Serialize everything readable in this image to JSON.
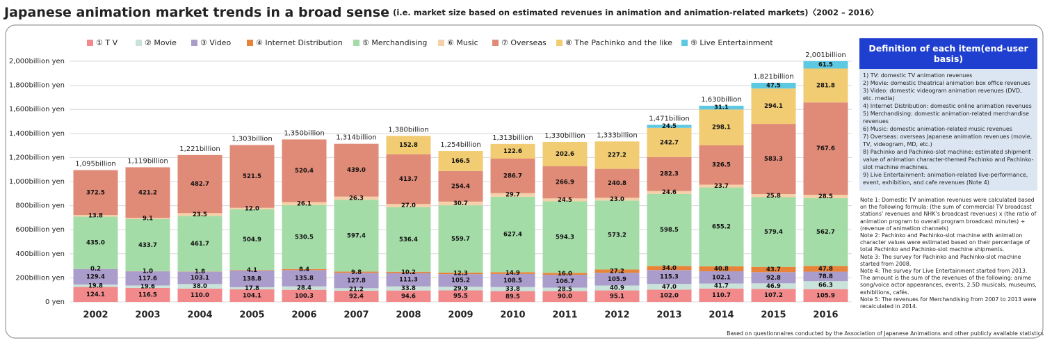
{
  "chart_data": {
    "type": "stacked_bar",
    "title": "Japanese animation market trends in a broad sense",
    "subtitle": "(i.e. market size based on estimated revenues in animation and animation-related markets)〈2002 – 2016〉",
    "categories": [
      "2002",
      "2003",
      "2004",
      "2005",
      "2006",
      "2007",
      "2008",
      "2009",
      "2010",
      "2011",
      "2012",
      "2013",
      "2014",
      "2015",
      "2016"
    ],
    "ylim": [
      0,
      2000
    ],
    "yticks": [
      {
        "value": 0,
        "label": "0 yen"
      },
      {
        "value": 200,
        "label": "200billion yen"
      },
      {
        "value": 400,
        "label": "400billion yen"
      },
      {
        "value": 600,
        "label": "600billion yen"
      },
      {
        "value": 800,
        "label": "800billion yen"
      },
      {
        "value": 1000,
        "label": "1,000billion yen"
      },
      {
        "value": 1200,
        "label": "1,200billion yen"
      },
      {
        "value": 1400,
        "label": "1,400billion yen"
      },
      {
        "value": 1600,
        "label": "1,600billion yen"
      },
      {
        "value": 1800,
        "label": "1,800billion yen"
      },
      {
        "value": 2000,
        "label": "2,000billion yen"
      }
    ],
    "grid": true,
    "legend": "top",
    "series": [
      {
        "name": "① T V",
        "color": "#f28a8c",
        "values": [
          124.1,
          116.5,
          110.0,
          104.1,
          100.3,
          92.4,
          94.6,
          95.5,
          89.5,
          90.0,
          95.1,
          102.0,
          110.7,
          107.2,
          105.9
        ],
        "value_labels": [
          "124.1",
          "116.5",
          "110.0",
          "104.1",
          "100.3",
          "92.4",
          "94.6",
          "95.5",
          "89.5",
          "90.0",
          "95.1",
          "102.0",
          "110.7",
          "107.2",
          "105.9"
        ]
      },
      {
        "name": "② Movie",
        "color": "#c9e3da",
        "values": [
          19.8,
          19.6,
          38.0,
          17.8,
          28.4,
          21.2,
          33.8,
          29.9,
          33.8,
          28.5,
          40.9,
          47.0,
          41.7,
          46.9,
          66.3
        ],
        "value_labels": [
          "19.8",
          "19.6",
          "38.0",
          "17.8",
          "28.4",
          "21.2",
          "33.8",
          "29.9",
          "33.8",
          "28.5",
          "40.9",
          "47.0",
          "41.7",
          "46.9",
          "66.3"
        ]
      },
      {
        "name": "③ Video",
        "color": "#ab9dcb",
        "values": [
          129.4,
          117.6,
          103.1,
          138.8,
          135.8,
          127.8,
          111.3,
          105.2,
          108.5,
          106.7,
          105.9,
          115.3,
          102.1,
          92.8,
          78.8
        ],
        "value_labels": [
          "129.4",
          "117.6",
          "103.1",
          "138.8",
          "135.8",
          "127.8",
          "111.3",
          "105.2",
          "108.5",
          "106.7",
          "105.9",
          "115.3",
          "102.1",
          "92.8",
          "78.8"
        ]
      },
      {
        "name": "④ Internet Distribution",
        "color": "#e8843a",
        "values": [
          0.2,
          1.0,
          1.8,
          4.1,
          8.4,
          9.8,
          10.2,
          12.3,
          14.9,
          16.0,
          27.2,
          34.0,
          40.8,
          43.7,
          47.8
        ],
        "value_labels": [
          "0.2",
          "1.0",
          "1.8",
          "4.1",
          "8.4",
          "9.8",
          "10.2",
          "12.3",
          "14.9",
          "16.0",
          "27.2",
          "34.0",
          "40.8",
          "43.7",
          "47.8"
        ]
      },
      {
        "name": "⑤ Merchandising",
        "color": "#a4dca8",
        "values": [
          435.0,
          433.7,
          461.7,
          504.9,
          530.5,
          597.4,
          536.4,
          559.7,
          627.4,
          594.3,
          573.2,
          598.5,
          655.2,
          579.4,
          562.7
        ],
        "value_labels": [
          "435.0",
          "433.7",
          "461.7",
          "504.9",
          "530.5",
          "597.4",
          "536.4",
          "559.7",
          "627.4",
          "594.3",
          "573.2",
          "598.5",
          "655.2",
          "579.4",
          "562.7"
        ]
      },
      {
        "name": "⑥ Music",
        "color": "#f5d0a8",
        "values": [
          13.8,
          9.1,
          23.5,
          12.0,
          26.1,
          26.3,
          27.0,
          30.7,
          29.7,
          24.5,
          23.0,
          24.6,
          23.7,
          25.8,
          28.5
        ],
        "value_labels": [
          "13.8",
          "9.1",
          "23.5",
          "12.0",
          "26.1",
          "26.3",
          "27.0",
          "30.7",
          "29.7",
          "24.5",
          "23.0",
          "24.6",
          "23.7",
          "25.8",
          "28.5"
        ]
      },
      {
        "name": "⑦ Overseas",
        "color": "#e08a78",
        "values": [
          372.5,
          421.2,
          482.7,
          521.5,
          520.4,
          439.0,
          413.7,
          254.4,
          286.7,
          266.9,
          240.8,
          282.3,
          326.5,
          583.3,
          767.6
        ],
        "value_labels": [
          "372.5",
          "421.2",
          "482.7",
          "521.5",
          "520.4",
          "439.0",
          "413.7",
          "254.4",
          "286.7",
          "266.9",
          "240.8",
          "282.3",
          "326.5",
          "583.3",
          "767.6"
        ]
      },
      {
        "name": "⑧ The Pachinko and the like",
        "color": "#f1cc72",
        "values": [
          null,
          null,
          null,
          null,
          null,
          null,
          152.8,
          166.5,
          122.6,
          202.6,
          227.2,
          242.7,
          298.1,
          294.1,
          281.8
        ],
        "value_labels": [
          null,
          null,
          null,
          null,
          null,
          null,
          "152.8",
          "166.5",
          "122.6",
          "202.6",
          "227.2",
          "242.7",
          "298.1",
          "294.1",
          "281.8"
        ]
      },
      {
        "name": "⑨ Live Entertainment",
        "color": "#5cc8e2",
        "values": [
          null,
          null,
          null,
          null,
          null,
          null,
          null,
          null,
          null,
          null,
          null,
          24.5,
          31.1,
          47.5,
          61.5
        ],
        "value_labels": [
          null,
          null,
          null,
          null,
          null,
          null,
          null,
          null,
          null,
          null,
          null,
          "24.5",
          "31.1",
          "47.5",
          "61.5"
        ]
      }
    ],
    "totals": {
      "values": [
        1095,
        1119,
        1221,
        1303,
        1350,
        1314,
        1380,
        1254,
        1313,
        1330,
        1333,
        1471,
        1630,
        1821,
        2001
      ],
      "value_labels": [
        "1,095billion",
        "1,119billion",
        "1,221billion",
        "1,303billion",
        "1,350billion",
        "1,314billion",
        "1,380billion",
        "1,254billion",
        "1,313billion",
        "1,330billion",
        "1,333billion",
        "1,471billion",
        "1,630billion",
        "1,821billion",
        "2,001billion"
      ]
    }
  },
  "definitions": {
    "title": "Definition of each item(end-user basis)",
    "items": [
      "1) TV: domestic TV animation revenues",
      "2) Movie: domestic theatrical animation box office revenues",
      "3) Video: domestic videogram animation revenues (DVD, etc. media)",
      "4) Internet Distribution: domestic online animation revenues",
      "5) Merchandising: domestic animation-related merchandise revenues",
      "6) Music: domestic animation-related music revenues",
      "7) Overseas: overseas Japanese animation revenues (movie, TV, videogram, MD, etc.)",
      "8) Pachinko and Pachinko-slot machine: estimated shipment value of animation character-themed Pachinko and Pachinko-slot machine machines.",
      "9) Live Entertainment: animation-related live-performance, event, exhibition, and cafe revenues (Note 4)"
    ]
  },
  "notes": [
    "Note 1: Domestic TV animation revenues were calculated based on the following formula: (the sum of commercial TV broadcast stations’ revenues and NHK’s broadcast revenues) x (the ratio of animation program to overall program broadcast minutes) + (revenue of animation channels)",
    "Note 2: Pachinko and Pachinko-slot machine with animation character values were estimated based on their percentage of total Pachinko and Pachinko-slot machine shipments.",
    "Note 3: The survey for Pachinko and Pachinko-slot machine started from 2008.",
    "Note 4: The survey for Live Entertainment started from 2013. The amount is the sum of the revenues of the following: anime song/voice actor appearances, events, 2.5D musicals, museums, exhibitions, cafés.",
    "Note 5: The revenues for Merchandising from 2007 to 2013 were recalculated in 2014."
  ],
  "source": "Based on questionnaires conducted by the Association of Japanese Animations and other publicly available statistics"
}
